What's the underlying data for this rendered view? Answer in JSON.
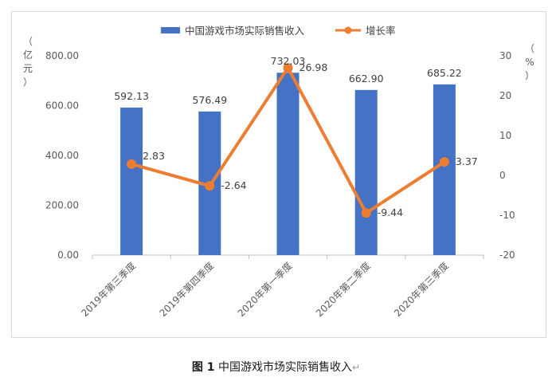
{
  "chart_data": {
    "type": "bar",
    "categories": [
      "2019年第三季度",
      "2019年第四季度",
      "2020年第一季度",
      "2020年第二季度",
      "2020年第三季度"
    ],
    "series": [
      {
        "name": "中国游戏市场实际销售收入",
        "type": "bar",
        "axis": "left",
        "color": "#4472C4",
        "values": [
          592.13,
          576.49,
          732.03,
          662.9,
          685.22
        ],
        "labels": [
          "592.13",
          "576.49",
          "732.03",
          "662.90",
          "685.22"
        ]
      },
      {
        "name": "增长率",
        "type": "line",
        "axis": "right",
        "color": "#ED7D31",
        "values": [
          2.83,
          -2.64,
          26.98,
          -9.44,
          3.37
        ],
        "labels": [
          "2.83",
          "-2.64",
          "26.98",
          "-9.44",
          "3.37"
        ]
      }
    ],
    "left_axis": {
      "min": 0,
      "max": 800,
      "ticks": [
        "0.00",
        "200.00",
        "400.00",
        "600.00",
        "800.00"
      ],
      "unit": "（亿元）"
    },
    "right_axis": {
      "min": -20,
      "max": 30,
      "ticks": [
        "-20",
        "-10",
        "0",
        "10",
        "20",
        "30"
      ],
      "unit": "（%）"
    },
    "legend_position": "top",
    "grid": false
  },
  "caption": {
    "figure_number": "图 1",
    "title": "中国游戏市场实际销售收入",
    "return_mark": "↵"
  }
}
